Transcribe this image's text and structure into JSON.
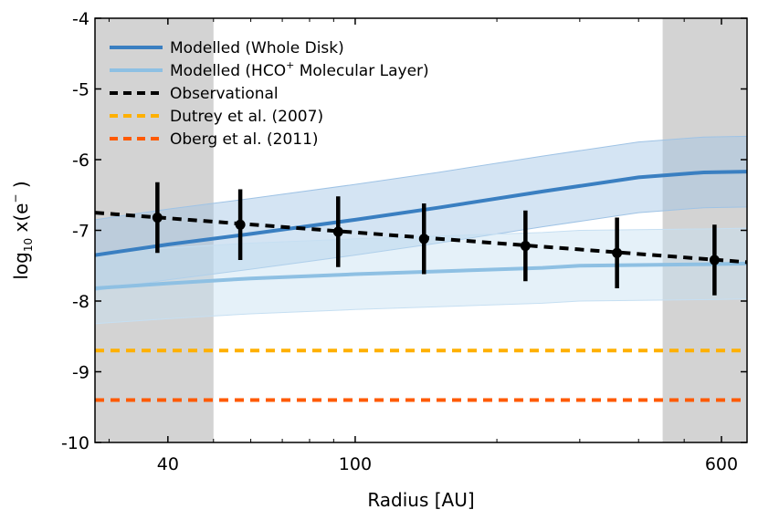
{
  "chart_data": {
    "type": "line",
    "title": "",
    "xlabel": "Radius [AU]",
    "ylabel_main": "log",
    "ylabel_sub": "10",
    "ylabel_rest": " x(e",
    "ylabel_sup": "−",
    "ylabel_end": " )",
    "x_scale": "log",
    "xlim": [
      28,
      680
    ],
    "ylim": [
      -10,
      -4
    ],
    "x_ticks": [
      40,
      100,
      600
    ],
    "x_tick_labels": [
      "40",
      "100",
      "600"
    ],
    "y_ticks": [
      -10,
      -9,
      -8,
      -7,
      -6,
      -5,
      -4
    ],
    "y_tick_labels": [
      "-10",
      "-9",
      "-8",
      "-7",
      "-6",
      "-5",
      "-4"
    ],
    "shaded_regions": [
      {
        "x0": 28,
        "x1": 50
      },
      {
        "x0": 450,
        "x1": 680
      }
    ],
    "legend_position": "top-left",
    "series": [
      {
        "name": "Modelled (Whole Disk)",
        "style": "solid",
        "color": "#3a7fc1",
        "x": [
          28,
          40,
          60,
          100,
          150,
          250,
          400,
          550,
          680
        ],
        "y": [
          -7.35,
          -7.2,
          -7.05,
          -6.85,
          -6.68,
          -6.45,
          -6.25,
          -6.18,
          -6.17
        ],
        "band_lower": [
          -7.85,
          -7.7,
          -7.55,
          -7.35,
          -7.18,
          -6.95,
          -6.75,
          -6.68,
          -6.67
        ],
        "band_upper": [
          -6.85,
          -6.7,
          -6.55,
          -6.35,
          -6.18,
          -5.95,
          -5.75,
          -5.68,
          -5.67
        ],
        "band_color": "#9fc3e5"
      },
      {
        "name_prefix": "Modelled (HCO",
        "name_sup": "+",
        "name_suffix": " Molecular Layer)",
        "style": "solid",
        "color": "#8ec0e3",
        "x": [
          28,
          40,
          60,
          100,
          150,
          250,
          300,
          400,
          550,
          680
        ],
        "y": [
          -7.82,
          -7.75,
          -7.68,
          -7.62,
          -7.58,
          -7.53,
          -7.5,
          -7.49,
          -7.48,
          -7.47
        ],
        "band_lower": [
          -8.32,
          -8.25,
          -8.18,
          -8.12,
          -8.08,
          -8.03,
          -8.0,
          -7.99,
          -7.98,
          -7.97
        ],
        "band_upper": [
          -7.32,
          -7.25,
          -7.18,
          -7.12,
          -7.08,
          -7.03,
          -7.0,
          -6.99,
          -6.98,
          -6.97
        ],
        "band_color": "#c6dff2"
      },
      {
        "name": "Observational",
        "style": "dashed",
        "color": "#000000",
        "x": [
          28,
          680
        ],
        "y": [
          -6.75,
          -7.45
        ]
      },
      {
        "name": "Dutrey et al. (2007)",
        "style": "dashed",
        "color": "#ffb000",
        "x": [
          28,
          680
        ],
        "y": [
          -8.7,
          -8.7
        ]
      },
      {
        "name": "Oberg et al. (2011)",
        "style": "dashed",
        "color": "#ff5a00",
        "x": [
          28,
          680
        ],
        "y": [
          -9.4,
          -9.4
        ]
      }
    ],
    "observations": {
      "x": [
        38,
        57,
        92,
        140,
        230,
        360,
        580
      ],
      "y": [
        -6.82,
        -6.92,
        -7.02,
        -7.12,
        -7.22,
        -7.32,
        -7.42
      ],
      "err": 0.5,
      "color": "#000000"
    }
  }
}
